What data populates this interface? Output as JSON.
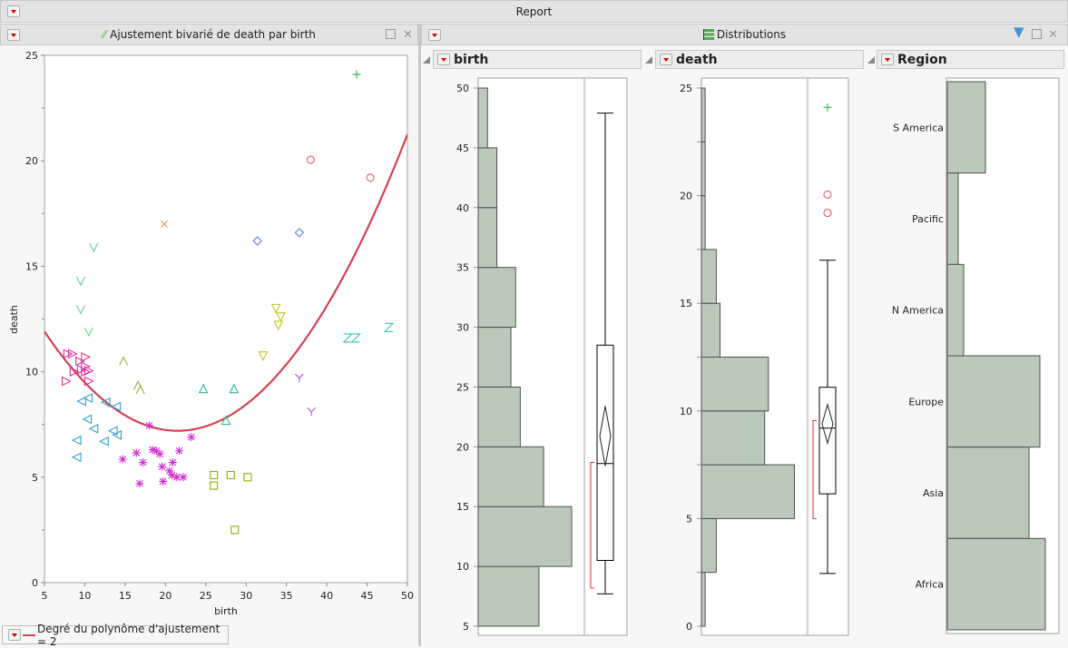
{
  "report": {
    "title": "Report"
  },
  "bivariate": {
    "title": "Ajustement bivarié de death par birth",
    "legend": "Degré du polynôme d'ajustement = 2"
  },
  "distributions": {
    "title": "Distributions",
    "columns": [
      "birth",
      "death",
      "Region"
    ]
  },
  "colors": {
    "fit": "#d4424f",
    "hist_fill": "#bbc9bb",
    "hist_stroke": "#4a544a",
    "bracket": "#e03040"
  },
  "chart_data": [
    {
      "type": "scatter",
      "title": "Ajustement bivarié de death par birth",
      "xlabel": "birth",
      "ylabel": "death",
      "xlim": [
        5,
        50
      ],
      "ylim": [
        0,
        25
      ],
      "xticks": [
        "5",
        "10",
        "15",
        "20",
        "25",
        "30",
        "35",
        "40",
        "45",
        "50"
      ],
      "yticks": [
        "0",
        "5",
        "10",
        "15",
        "20",
        "25"
      ],
      "fit": {
        "degree": 2,
        "vertex_x": 21.5,
        "vertex_y": 7.2,
        "a": 0.0173
      },
      "series": [
        {
          "marker": "plus",
          "color": "#2fb344",
          "points": [
            [
              43.7,
              24.1
            ]
          ]
        },
        {
          "marker": "circle",
          "color": "#e05a6a",
          "points": [
            [
              38.0,
              20.05
            ],
            [
              45.4,
              19.2
            ]
          ]
        },
        {
          "marker": "x",
          "color": "#e8913a",
          "points": [
            [
              19.85,
              17.0
            ]
          ]
        },
        {
          "marker": "diamond",
          "color": "#5a7de8",
          "points": [
            [
              31.4,
              16.2
            ],
            [
              36.6,
              16.6
            ]
          ]
        },
        {
          "marker": "v",
          "color": "#6dcc8e",
          "points": [
            [
              11.1,
              15.9
            ],
            [
              9.5,
              14.3
            ],
            [
              9.5,
              12.95
            ],
            [
              10.5,
              11.9
            ]
          ]
        },
        {
          "marker": "tri-down",
          "color": "#c8c420",
          "points": [
            [
              33.7,
              13.0
            ],
            [
              34.3,
              12.6
            ],
            [
              34.0,
              12.2
            ],
            [
              32.1,
              10.75
            ]
          ]
        },
        {
          "marker": "z",
          "color": "#30c8c8",
          "points": [
            [
              42.6,
              11.6
            ],
            [
              43.6,
              11.6
            ],
            [
              47.7,
              12.1
            ]
          ]
        },
        {
          "marker": "y",
          "color": "#b050e0",
          "points": [
            [
              36.6,
              9.7
            ],
            [
              38.1,
              8.1
            ]
          ]
        },
        {
          "marker": "tri-up",
          "color": "#30b890",
          "points": [
            [
              24.7,
              9.2
            ],
            [
              28.5,
              9.2
            ],
            [
              27.5,
              7.7
            ]
          ]
        },
        {
          "marker": "caret",
          "color": "#a0b030",
          "points": [
            [
              14.8,
              10.5
            ],
            [
              16.6,
              9.35
            ],
            [
              16.9,
              9.15
            ]
          ]
        },
        {
          "marker": "tri-right",
          "color": "#e030a0",
          "points": [
            [
              7.9,
              10.85
            ],
            [
              8.5,
              10.85
            ],
            [
              10.1,
              10.7
            ],
            [
              9.4,
              10.5
            ],
            [
              10.1,
              10.25
            ],
            [
              8.7,
              10.0
            ],
            [
              10.1,
              10.0
            ],
            [
              9.6,
              10.1
            ],
            [
              10.5,
              10.05
            ],
            [
              7.7,
              9.55
            ],
            [
              10.5,
              9.55
            ]
          ]
        },
        {
          "marker": "tri-left",
          "color": "#30a0d0",
          "points": [
            [
              9.6,
              8.6
            ],
            [
              10.4,
              8.75
            ],
            [
              12.6,
              8.55
            ],
            [
              13.9,
              8.35
            ],
            [
              10.3,
              7.75
            ],
            [
              11.1,
              7.3
            ],
            [
              12.4,
              6.7
            ],
            [
              13.5,
              7.2
            ],
            [
              14.0,
              7.0
            ],
            [
              9.0,
              6.75
            ],
            [
              9.0,
              5.95
            ]
          ]
        },
        {
          "marker": "asterisk",
          "color": "#d030d0",
          "points": [
            [
              18.0,
              7.45
            ],
            [
              23.2,
              6.9
            ],
            [
              16.4,
              6.15
            ],
            [
              14.7,
              5.85
            ],
            [
              17.2,
              5.7
            ],
            [
              18.4,
              6.3
            ],
            [
              18.9,
              6.25
            ],
            [
              19.3,
              6.1
            ],
            [
              19.6,
              5.5
            ],
            [
              20.9,
              5.7
            ],
            [
              21.7,
              6.25
            ],
            [
              20.8,
              5.1
            ],
            [
              20.5,
              5.3
            ],
            [
              21.4,
              5.0
            ],
            [
              22.2,
              5.0
            ],
            [
              16.8,
              4.7
            ],
            [
              19.7,
              4.8
            ]
          ]
        },
        {
          "marker": "square",
          "color": "#90b000",
          "points": [
            [
              26.0,
              5.1
            ],
            [
              28.1,
              5.1
            ],
            [
              30.2,
              5.0
            ],
            [
              26.0,
              4.6
            ],
            [
              28.6,
              2.5
            ]
          ]
        }
      ]
    },
    {
      "type": "bar",
      "name": "birth",
      "bin_edges": [
        5,
        10,
        15,
        20,
        25,
        30,
        35,
        40,
        45,
        50
      ],
      "counts": [
        13,
        20,
        14,
        9,
        7,
        8,
        4,
        4,
        2
      ],
      "yticks": [
        "5",
        "10",
        "15",
        "20",
        "25",
        "30",
        "35",
        "40",
        "45",
        "50"
      ],
      "ylim": [
        5,
        50
      ],
      "box": {
        "min": 7.7,
        "q1": 10.5,
        "median": 18.6,
        "q3": 28.5,
        "max": 47.9,
        "mean": 20.9,
        "mean_ci": [
          18.4,
          23.4
        ],
        "shortest_half": [
          8.2,
          18.7
        ],
        "outliers": []
      }
    },
    {
      "type": "bar",
      "name": "death",
      "bin_edges": [
        0,
        2.5,
        5,
        7.5,
        10,
        12.5,
        15,
        17.5,
        20,
        22.5,
        25
      ],
      "counts": [
        1,
        4,
        25,
        17,
        18,
        5,
        4,
        1,
        1,
        1
      ],
      "yticks": [
        "0",
        "5",
        "10",
        "15",
        "20",
        "25"
      ],
      "ylim": [
        0,
        25
      ],
      "box": {
        "min": 2.45,
        "q1": 6.15,
        "median": 9.2,
        "q3": 11.1,
        "max": 17.0,
        "mean": 9.4,
        "mean_ci": [
          8.5,
          10.3
        ],
        "shortest_half": [
          5.0,
          9.55
        ],
        "outliers": [
          {
            "v": 24.1,
            "marker": "plus",
            "color": "#2fb344"
          },
          {
            "v": 20.05,
            "marker": "circle",
            "color": "#e05a6a"
          },
          {
            "v": 19.2,
            "marker": "circle",
            "color": "#e05a6a"
          }
        ]
      }
    },
    {
      "type": "bar",
      "name": "Region",
      "categories": [
        "S America",
        "Pacific",
        "N America",
        "Europe",
        "Asia",
        "Africa"
      ],
      "counts": [
        7,
        2,
        3,
        17,
        15,
        18
      ]
    }
  ]
}
